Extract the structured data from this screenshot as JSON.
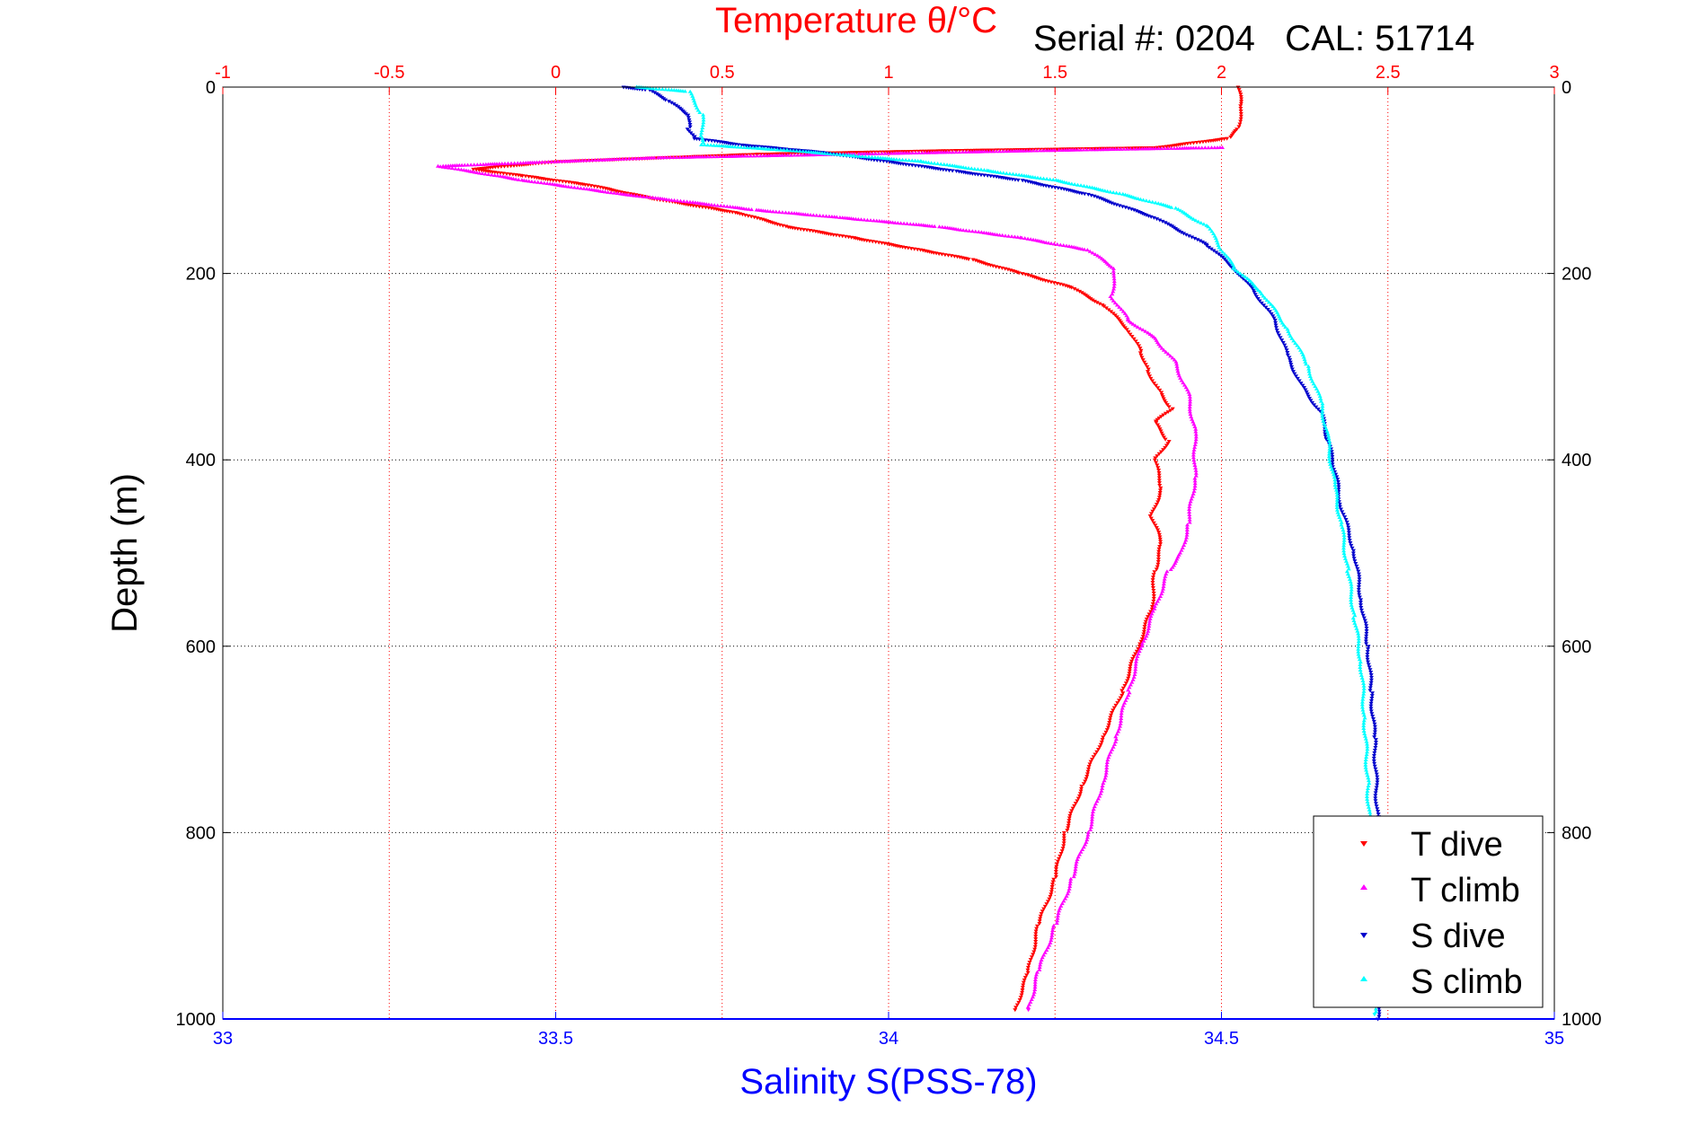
{
  "chart_data": {
    "type": "scatter",
    "title": "Temperature θ/°C",
    "annotation": "Serial #: 0204   CAL: 51714",
    "xlabel": "Salinity S(PSS-78)",
    "ylabel": "Depth (m)",
    "x_bottom": {
      "label": "Salinity S(PSS-78)",
      "range": [
        33,
        35
      ],
      "ticks": [
        "33",
        "33.5",
        "34",
        "34.5",
        "35"
      ],
      "color": "#0000ff"
    },
    "x_top": {
      "label": "Temperature θ/°C",
      "range": [
        -1,
        3
      ],
      "ticks": [
        "-1",
        "-0.5",
        "0",
        "0.5",
        "1",
        "1.5",
        "2",
        "2.5",
        "3"
      ],
      "color": "#ff0000"
    },
    "y": {
      "label": "Depth (m)",
      "range": [
        0,
        1000
      ],
      "reversed": true,
      "ticks": [
        "0",
        "200",
        "400",
        "600",
        "800",
        "1000"
      ]
    },
    "grid": true,
    "legend_position": "bottom-right",
    "series": [
      {
        "name": "T dive",
        "axis": "temperature",
        "color": "#ff0000",
        "marker": "triangle-down",
        "points": [
          [
            2.05,
            0
          ],
          [
            2.06,
            20
          ],
          [
            2.05,
            45
          ],
          [
            2.02,
            55
          ],
          [
            1.8,
            65
          ],
          [
            1.2,
            68
          ],
          [
            0.6,
            72
          ],
          [
            0.0,
            80
          ],
          [
            -0.25,
            88
          ],
          [
            -0.1,
            95
          ],
          [
            0.1,
            105
          ],
          [
            0.3,
            120
          ],
          [
            0.55,
            135
          ],
          [
            0.7,
            150
          ],
          [
            0.9,
            162
          ],
          [
            1.1,
            175
          ],
          [
            1.25,
            185
          ],
          [
            1.4,
            200
          ],
          [
            1.55,
            215
          ],
          [
            1.65,
            235
          ],
          [
            1.72,
            260
          ],
          [
            1.76,
            285
          ],
          [
            1.78,
            305
          ],
          [
            1.82,
            330
          ],
          [
            1.85,
            345
          ],
          [
            1.8,
            360
          ],
          [
            1.84,
            380
          ],
          [
            1.8,
            400
          ],
          [
            1.82,
            430
          ],
          [
            1.79,
            460
          ],
          [
            1.82,
            490
          ],
          [
            1.8,
            520
          ],
          [
            1.79,
            560
          ],
          [
            1.75,
            600
          ],
          [
            1.7,
            650
          ],
          [
            1.64,
            700
          ],
          [
            1.58,
            750
          ],
          [
            1.53,
            800
          ],
          [
            1.5,
            850
          ],
          [
            1.45,
            900
          ],
          [
            1.42,
            950
          ],
          [
            1.38,
            990
          ]
        ]
      },
      {
        "name": "T climb",
        "axis": "temperature",
        "color": "#ff00ff",
        "marker": "triangle-up",
        "points": [
          [
            2.0,
            65
          ],
          [
            1.5,
            68
          ],
          [
            0.9,
            72
          ],
          [
            0.3,
            76
          ],
          [
            -0.35,
            85
          ],
          [
            -0.1,
            100
          ],
          [
            0.2,
            115
          ],
          [
            0.6,
            132
          ],
          [
            0.85,
            140
          ],
          [
            1.15,
            150
          ],
          [
            1.4,
            162
          ],
          [
            1.6,
            175
          ],
          [
            1.68,
            195
          ],
          [
            1.67,
            225
          ],
          [
            1.72,
            250
          ],
          [
            1.8,
            270
          ],
          [
            1.86,
            295
          ],
          [
            1.9,
            330
          ],
          [
            1.92,
            370
          ],
          [
            1.92,
            420
          ],
          [
            1.9,
            470
          ],
          [
            1.88,
            500
          ],
          [
            1.84,
            520
          ],
          [
            1.8,
            560
          ],
          [
            1.76,
            600
          ],
          [
            1.72,
            650
          ],
          [
            1.68,
            700
          ],
          [
            1.64,
            750
          ],
          [
            1.6,
            800
          ],
          [
            1.55,
            850
          ],
          [
            1.5,
            900
          ],
          [
            1.45,
            950
          ],
          [
            1.42,
            990
          ]
        ]
      },
      {
        "name": "S dive",
        "axis": "salinity",
        "color": "#0000cc",
        "marker": "triangle-down",
        "points": [
          [
            33.6,
            0
          ],
          [
            33.64,
            3
          ],
          [
            33.67,
            15
          ],
          [
            33.7,
            30
          ],
          [
            33.7,
            45
          ],
          [
            33.71,
            55
          ],
          [
            33.78,
            62
          ],
          [
            33.9,
            70
          ],
          [
            34.0,
            80
          ],
          [
            34.1,
            90
          ],
          [
            34.2,
            100
          ],
          [
            34.3,
            115
          ],
          [
            34.4,
            140
          ],
          [
            34.48,
            170
          ],
          [
            34.52,
            195
          ],
          [
            34.55,
            220
          ],
          [
            34.58,
            250
          ],
          [
            34.6,
            290
          ],
          [
            34.62,
            320
          ],
          [
            34.65,
            350
          ],
          [
            34.66,
            380
          ],
          [
            34.67,
            410
          ],
          [
            34.68,
            450
          ],
          [
            34.7,
            500
          ],
          [
            34.71,
            550
          ],
          [
            34.72,
            600
          ],
          [
            34.725,
            650
          ],
          [
            34.73,
            700
          ],
          [
            34.735,
            800
          ],
          [
            34.735,
            900
          ],
          [
            34.735,
            1000
          ]
        ]
      },
      {
        "name": "S climb",
        "axis": "salinity",
        "color": "#00ffff",
        "marker": "triangle-up",
        "points": [
          [
            33.62,
            0
          ],
          [
            33.7,
            5
          ],
          [
            33.72,
            30
          ],
          [
            33.72,
            55
          ],
          [
            33.72,
            62
          ],
          [
            33.85,
            68
          ],
          [
            33.95,
            74
          ],
          [
            34.05,
            80
          ],
          [
            34.15,
            90
          ],
          [
            34.25,
            100
          ],
          [
            34.35,
            115
          ],
          [
            34.43,
            130
          ],
          [
            34.48,
            150
          ],
          [
            34.5,
            175
          ],
          [
            34.52,
            195
          ],
          [
            34.56,
            220
          ],
          [
            34.6,
            260
          ],
          [
            34.63,
            300
          ],
          [
            34.65,
            340
          ],
          [
            34.66,
            380
          ],
          [
            34.67,
            430
          ],
          [
            34.68,
            470
          ],
          [
            34.69,
            520
          ],
          [
            34.7,
            570
          ],
          [
            34.71,
            620
          ],
          [
            34.715,
            680
          ],
          [
            34.72,
            750
          ],
          [
            34.725,
            850
          ],
          [
            34.73,
            950
          ],
          [
            34.73,
            995
          ]
        ]
      }
    ]
  }
}
